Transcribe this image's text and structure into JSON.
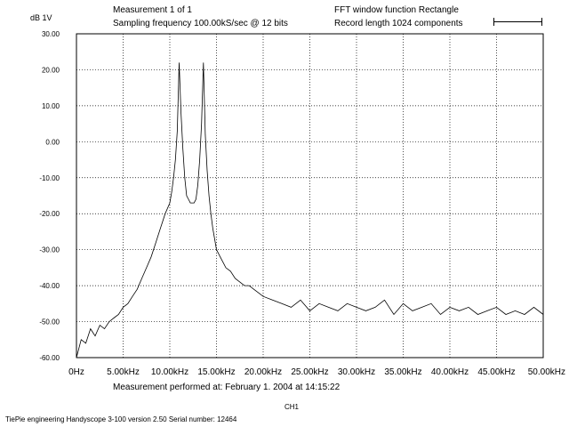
{
  "header": {
    "measurement": "Measurement 1 of 1",
    "sampling": "Sampling frequency 100.00kS/sec @ 12 bits",
    "fft_window": "FFT window function Rectangle",
    "record_length": "Record length 1024 components"
  },
  "footer": {
    "performed": "Measurement performed at:  February 1. 2004 at 14:15:22",
    "channel": "CH1",
    "company": "TiePie engineering   Handyscope 3-100  version 2.50  Serial number: 12464"
  },
  "chart_data": {
    "type": "line",
    "title": "",
    "ylabel_unit": "dB 1V",
    "xlabel": "",
    "xlim": [
      0,
      50000
    ],
    "ylim": [
      -60,
      30
    ],
    "grid": true,
    "x_tick_values": [
      0,
      5000,
      10000,
      15000,
      20000,
      25000,
      30000,
      35000,
      40000,
      45000,
      50000
    ],
    "x_tick_labels": [
      "0Hz",
      "5.00kHz",
      "10.00kHz",
      "15.00kHz",
      "20.00kHz",
      "25.00kHz",
      "30.00kHz",
      "35.00kHz",
      "40.00kHz",
      "45.00kHz",
      "50.00kHz"
    ],
    "y_tick_values": [
      30,
      20,
      10,
      0,
      -10,
      -20,
      -30,
      -40,
      -50,
      -60
    ],
    "y_tick_labels": [
      "30.00",
      "20.00",
      "10.00",
      "0.00",
      "-10.00",
      "-20.00",
      "-30.00",
      "-40.00",
      "-50.00",
      "-60.00"
    ],
    "series": [
      {
        "color": "#000000",
        "x": [
          0,
          500,
          1000,
          1500,
          2000,
          2500,
          3000,
          3500,
          4000,
          4500,
          5000,
          5500,
          6000,
          6500,
          7000,
          7500,
          8000,
          8500,
          9000,
          9500,
          10000,
          10200,
          10400,
          10600,
          10800,
          11000,
          11200,
          11400,
          11600,
          11800,
          12000,
          12200,
          12400,
          12600,
          12800,
          13000,
          13200,
          13400,
          13600,
          13800,
          14000,
          14200,
          14400,
          14600,
          14800,
          15000,
          15200,
          15400,
          15600,
          15800,
          16000,
          16500,
          17000,
          17500,
          18000,
          18500,
          19000,
          19500,
          20000,
          21000,
          22000,
          23000,
          24000,
          25000,
          26000,
          27000,
          28000,
          29000,
          30000,
          31000,
          32000,
          33000,
          34000,
          35000,
          36000,
          37000,
          38000,
          39000,
          40000,
          41000,
          42000,
          43000,
          44000,
          45000,
          46000,
          47000,
          48000,
          49000,
          50000
        ],
        "y": [
          -60,
          -55,
          -56,
          -52,
          -54,
          -51,
          -52,
          -50,
          -49,
          -48,
          -46,
          -45,
          -43,
          -41,
          -38,
          -35,
          -32,
          -28,
          -24,
          -20,
          -17,
          -14,
          -10,
          -5,
          3,
          22,
          8,
          -2,
          -10,
          -15,
          -16,
          -17,
          -17,
          -17,
          -16,
          -12,
          -5,
          5,
          22,
          2,
          -8,
          -15,
          -20,
          -24,
          -27,
          -30,
          -31,
          -32,
          -33,
          -34,
          -35,
          -36,
          -38,
          -39,
          -40,
          -40,
          -41,
          -42,
          -43,
          -44,
          -45,
          -46,
          -44,
          -47,
          -45,
          -46,
          -47,
          -45,
          -46,
          -47,
          -46,
          -44,
          -48,
          -45,
          -47,
          -46,
          -45,
          -48,
          -46,
          -47,
          -46,
          -48,
          -47,
          -46,
          -48,
          -47,
          -48,
          -46,
          -48
        ]
      }
    ]
  }
}
